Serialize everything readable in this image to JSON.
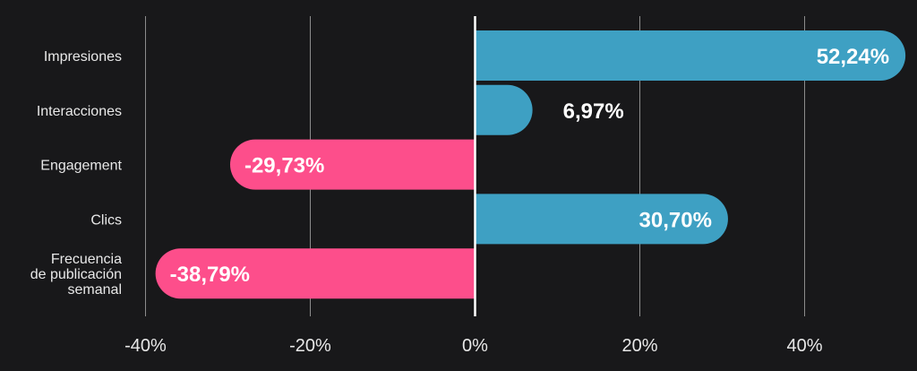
{
  "chart_data": {
    "type": "bar",
    "orientation": "horizontal",
    "categories": [
      "Impresiones",
      "Interacciones",
      "Engagement",
      "Clics",
      "Frecuencia de publicación semanal"
    ],
    "category_lines": [
      [
        "Impresiones"
      ],
      [
        "Interacciones"
      ],
      [
        "Engagement"
      ],
      [
        "Clics"
      ],
      [
        "Frecuencia",
        "de publicación",
        "semanal"
      ]
    ],
    "values": [
      52.24,
      6.97,
      -29.73,
      30.7,
      -38.79
    ],
    "data_labels": [
      "52,24%",
      "6,97%",
      "-29,73%",
      "30,70%",
      "-38,79%"
    ],
    "xlim": [
      -40,
      50
    ],
    "xticks": [
      -40,
      -20,
      0,
      20,
      40
    ],
    "xtick_labels": [
      "-40%",
      "-20%",
      "0%",
      "20%",
      "40%"
    ],
    "grid": true,
    "colors": {
      "background": "#18181a",
      "positive": "#3ea0c3",
      "negative": "#fd4e8b",
      "grid": "#8c8c8c",
      "zero_line": "#ffffff",
      "text": "#e8e8e8"
    }
  }
}
